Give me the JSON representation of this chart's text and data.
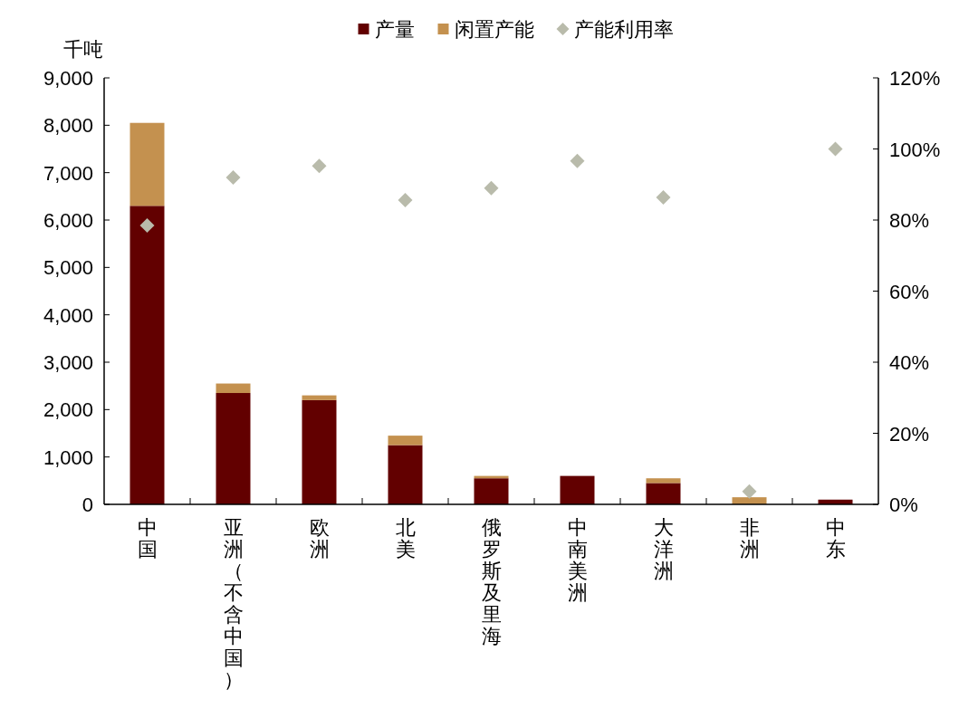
{
  "chart_data": {
    "type": "bar",
    "stacked": true,
    "ylabel": "千吨",
    "legend": "top",
    "grid": false,
    "marker": "diamond",
    "categories": [
      "中国",
      "亚洲（不含中国）",
      "欧洲",
      "北美",
      "俄罗斯及里海",
      "中南美洲",
      "大洋洲",
      "非洲",
      "中东"
    ],
    "series": [
      {
        "name": "产量",
        "color": "#620000",
        "values": [
          6300,
          2350,
          2200,
          1250,
          550,
          600,
          450,
          0,
          100
        ]
      },
      {
        "name": "闲置产能",
        "color": "#c4914f",
        "values": [
          1750,
          200,
          100,
          200,
          50,
          0,
          100,
          150,
          0
        ]
      },
      {
        "name": "产能利用率",
        "type": "scatter",
        "axis": "y2",
        "color": "#b9bbab",
        "values": [
          78.5,
          92,
          95.2,
          85.6,
          89,
          96.6,
          86.4,
          3.6,
          100
        ]
      }
    ],
    "ylim": [
      0,
      9000
    ],
    "yticks": [
      {
        "value": 0,
        "label": "0"
      },
      {
        "value": 1000,
        "label": "1,000"
      },
      {
        "value": 2000,
        "label": "2,000"
      },
      {
        "value": 3000,
        "label": "3,000"
      },
      {
        "value": 4000,
        "label": "4,000"
      },
      {
        "value": 5000,
        "label": "5,000"
      },
      {
        "value": 6000,
        "label": "6,000"
      },
      {
        "value": 7000,
        "label": "7,000"
      },
      {
        "value": 8000,
        "label": "8,000"
      },
      {
        "value": 9000,
        "label": "9,000"
      }
    ],
    "y2lim": [
      0,
      120
    ],
    "y2ticks": [
      {
        "value": 0,
        "label": "0%"
      },
      {
        "value": 20,
        "label": "20%"
      },
      {
        "value": 40,
        "label": "40%"
      },
      {
        "value": 60,
        "label": "60%"
      },
      {
        "value": 80,
        "label": "80%"
      },
      {
        "value": 100,
        "label": "100%"
      },
      {
        "value": 120,
        "label": "120%"
      }
    ]
  }
}
